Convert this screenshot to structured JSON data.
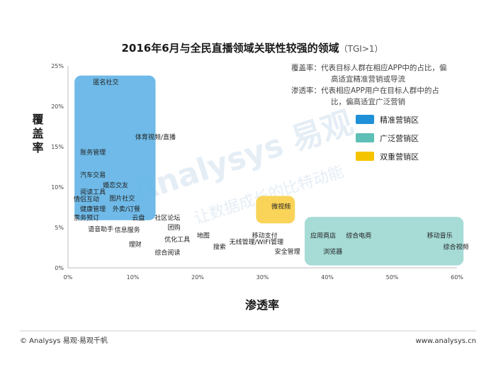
{
  "chart_data": {
    "type": "scatter",
    "title": "2016年6月与全民直播领域关联性较强的领域",
    "subtitle": "（TGI>1）",
    "xlabel": "渗透率",
    "ylabel": "覆盖率",
    "xlim": [
      0,
      60
    ],
    "ylim": [
      0,
      25
    ],
    "x_ticks": [
      "0%",
      "10%",
      "20%",
      "30%",
      "40%",
      "50%",
      "60%"
    ],
    "y_ticks": [
      "0%",
      "5%",
      "10%",
      "15%",
      "20%",
      "25%"
    ],
    "x_tick_values": [
      0,
      10,
      20,
      30,
      40,
      50,
      60
    ],
    "y_tick_values": [
      0,
      5,
      10,
      15,
      20,
      25
    ],
    "grid": false,
    "legend_position": "right",
    "notes": [
      "覆盖率：代表目标人群在相应APP中的占比，偏",
      "高适宜精准营销或导流",
      "渗透率：代表相应APP用户在目标人群中的占",
      "比，偏高适宜广泛营销"
    ],
    "legend": [
      {
        "name": "精准营销区",
        "color": "#1f8fd8"
      },
      {
        "name": "广泛营销区",
        "color": "#5dbfb5"
      },
      {
        "name": "双重营销区",
        "color": "#f5c400"
      }
    ],
    "zones": [
      {
        "name": "精准营销区",
        "color": "#63b4e6",
        "x": [
          1,
          13.5
        ],
        "y": [
          5.9,
          23.8
        ]
      },
      {
        "name": "广泛营销区",
        "color": "#9ed8d2",
        "x": [
          36.5,
          61
        ],
        "y": [
          0.3,
          6.3
        ]
      },
      {
        "name": "双重营销区",
        "color": "#f9d04a",
        "x": [
          29,
          35
        ],
        "y": [
          5.5,
          8.9
        ]
      }
    ],
    "points": [
      {
        "label": "匿名社交",
        "x": 3,
        "y": 23
      },
      {
        "label": "体育视频/直播",
        "x": 9.5,
        "y": 16.2
      },
      {
        "label": "账务管理",
        "x": 1,
        "y": 14.3
      },
      {
        "label": "汽车交易",
        "x": 1,
        "y": 11.5
      },
      {
        "label": "婚恋交友",
        "x": 4.5,
        "y": 10.2
      },
      {
        "label": "阅读工具",
        "x": 1,
        "y": 9.4
      },
      {
        "label": "情侣互动",
        "x": 0,
        "y": 8.5
      },
      {
        "label": "图片社交",
        "x": 5.5,
        "y": 8.6
      },
      {
        "label": "外卖/订餐",
        "x": 6,
        "y": 7.3
      },
      {
        "label": "健康管理",
        "x": 1,
        "y": 7.3
      },
      {
        "label": "云盘",
        "x": 9,
        "y": 6.2
      },
      {
        "label": "社区论坛",
        "x": 12.5,
        "y": 6.2
      },
      {
        "label": "票务预订",
        "x": 0,
        "y": 6.2
      },
      {
        "label": "团购",
        "x": 14.5,
        "y": 5.0
      },
      {
        "label": "语音助手",
        "x": 2.2,
        "y": 4.8
      },
      {
        "label": "信息服务",
        "x": 6.3,
        "y": 4.7
      },
      {
        "label": "地图",
        "x": 19,
        "y": 4.0
      },
      {
        "label": "移动支付",
        "x": 27.5,
        "y": 4.0
      },
      {
        "label": "优化工具",
        "x": 14,
        "y": 3.5
      },
      {
        "label": "无线管理/WIFI管理",
        "x": 24,
        "y": 3.2
      },
      {
        "label": "理财",
        "x": 8.5,
        "y": 2.9
      },
      {
        "label": "搜索",
        "x": 21.5,
        "y": 2.6
      },
      {
        "label": "综合阅读",
        "x": 12.5,
        "y": 1.9
      },
      {
        "label": "安全管理",
        "x": 31,
        "y": 2.0
      },
      {
        "label": "应用商店",
        "x": 36.5,
        "y": 4.0
      },
      {
        "label": "综合电商",
        "x": 42,
        "y": 4.0
      },
      {
        "label": "浏览器",
        "x": 38.5,
        "y": 2.0
      },
      {
        "label": "移动音乐",
        "x": 54.5,
        "y": 4.0
      },
      {
        "label": "综合视频",
        "x": 57,
        "y": 2.6
      },
      {
        "label": "微视频",
        "x": 30.5,
        "y": 7.6
      }
    ]
  },
  "footer": {
    "left": "© Analysys 易观·易观千帆",
    "right": "www.analysys.cn"
  },
  "watermark": {
    "main": "Analysys 易观",
    "sub": "让数据成长的比特动能"
  }
}
